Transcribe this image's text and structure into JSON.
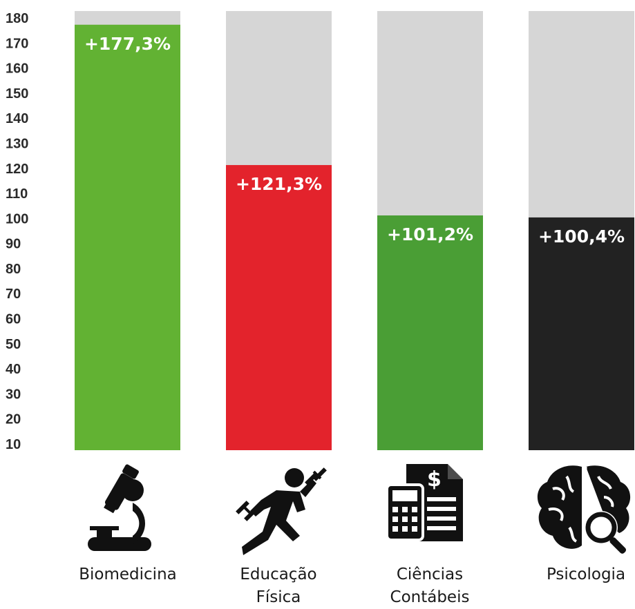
{
  "chart_data": {
    "type": "bar",
    "categories": [
      [
        "Biomedicina"
      ],
      [
        "Educação",
        "Física"
      ],
      [
        "Ciências",
        "Contábeis"
      ],
      [
        "Psicologia"
      ]
    ],
    "values": [
      177.3,
      121.3,
      101.2,
      100.4
    ],
    "data_labels": [
      "+177,3%",
      "+121,3%",
      "+101,2%",
      "+100,4%"
    ],
    "bar_colors": [
      "#62b233",
      "#e3232c",
      "#4a9e35",
      "#222222"
    ],
    "background_bar_color": "#d6d6d6",
    "yticks": [
      10,
      20,
      30,
      40,
      50,
      60,
      70,
      80,
      90,
      100,
      110,
      120,
      130,
      140,
      150,
      160,
      170,
      180
    ],
    "ylim": [
      0,
      180
    ],
    "grid": false,
    "legend": "none",
    "title": "",
    "xlabel": "",
    "ylabel": "",
    "icons": [
      "microscope-icon",
      "runner-with-dumbbells-icon",
      "calculator-invoice-icon",
      "brain-magnifier-icon"
    ]
  }
}
